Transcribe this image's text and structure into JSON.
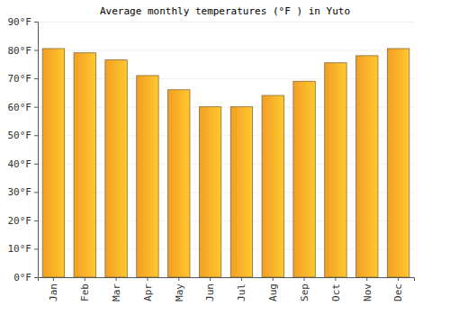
{
  "chart_data": {
    "type": "bar",
    "title": "Average monthly temperatures (°F ) in Yuto",
    "categories": [
      "Jan",
      "Feb",
      "Mar",
      "Apr",
      "May",
      "Jun",
      "Jul",
      "Aug",
      "Sep",
      "Oct",
      "Nov",
      "Dec"
    ],
    "values": [
      80.5,
      79,
      76.5,
      71,
      66,
      60,
      60,
      64,
      69,
      75.5,
      78,
      80.5
    ],
    "color": "#ffa726",
    "ylim": [
      0,
      90
    ],
    "yticks": [
      {
        "value": 0,
        "label": "0°F"
      },
      {
        "value": 10,
        "label": "10°F"
      },
      {
        "value": 20,
        "label": "20°F"
      },
      {
        "value": 30,
        "label": "30°F"
      },
      {
        "value": 40,
        "label": "40°F"
      },
      {
        "value": 50,
        "label": "50°F"
      },
      {
        "value": 60,
        "label": "60°F"
      },
      {
        "value": 70,
        "label": "70°F"
      },
      {
        "value": 80,
        "label": "80°F"
      },
      {
        "value": 90,
        "label": "90°F"
      }
    ],
    "grid": true
  }
}
